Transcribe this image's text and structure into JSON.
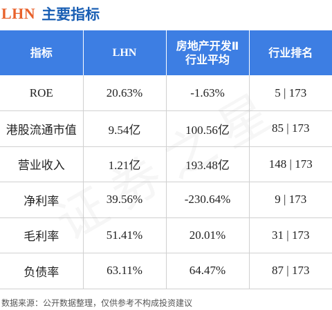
{
  "title": {
    "ticker": "LHN",
    "text": "主要指标"
  },
  "header": [
    "指标",
    "LHN",
    "房地产开发Ⅱ\n行业平均",
    "行业排名"
  ],
  "header_lines": {
    "col3_line1": "房地产开发Ⅱ",
    "col3_line2": "行业平均"
  },
  "rows": [
    {
      "name": "ROE",
      "company": "20.63%",
      "industry_avg": "-1.63%",
      "rank": "5 | 173"
    },
    {
      "name": "港股流通市值",
      "company": "9.54亿",
      "industry_avg": "100.56亿",
      "rank": "85 | 173"
    },
    {
      "name": "营业收入",
      "company": "1.21亿",
      "industry_avg": "193.48亿",
      "rank": "148 | 173"
    },
    {
      "name": "净利率",
      "company": "39.56%",
      "industry_avg": "-230.64%",
      "rank": "9 | 173"
    },
    {
      "name": "毛利率",
      "company": "51.41%",
      "industry_avg": "20.01%",
      "rank": "31 | 173"
    },
    {
      "name": "负债率",
      "company": "63.11%",
      "industry_avg": "64.47%",
      "rank": "87 | 173"
    }
  ],
  "watermark": "证券之星",
  "footer": "数据来源：公开数据整理，仅供参考不构成投资建议",
  "colors": {
    "header_bg": "#3d7ee3",
    "ticker": "#e8622c",
    "title": "#1a5fb4"
  }
}
